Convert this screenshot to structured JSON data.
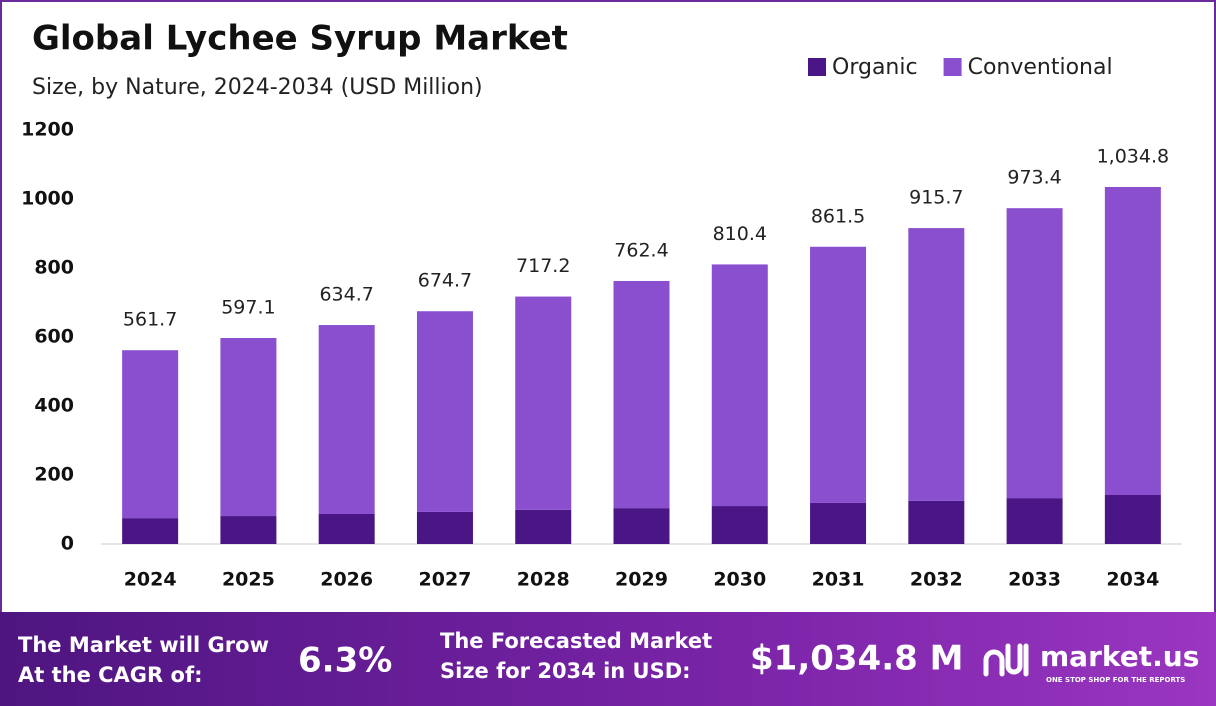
{
  "chart_data": {
    "type": "stacked_bar",
    "title": "Global Lychee Syrup Market",
    "subtitle": "Size, by Nature, 2024-2034 (USD Million)",
    "categories": [
      "2024",
      "2025",
      "2026",
      "2027",
      "2028",
      "2029",
      "2030",
      "2031",
      "2032",
      "2033",
      "2034"
    ],
    "series": [
      {
        "name": "Organic",
        "color": "#4a1585",
        "values": [
          75,
          81,
          87,
          93,
          99,
          104,
          110,
          119,
          125,
          133,
          142
        ]
      },
      {
        "name": "Conventional",
        "color": "#8a4fcf",
        "values": [
          486.7,
          516.1,
          547.7,
          581.7,
          618.2,
          658.4,
          700.4,
          742.5,
          790.7,
          840.4,
          892.8
        ]
      }
    ],
    "totals": [
      561.7,
      597.1,
      634.7,
      674.7,
      717.2,
      762.4,
      810.4,
      861.5,
      915.7,
      973.4,
      1034.8
    ],
    "total_labels": [
      "561.7",
      "597.1",
      "634.7",
      "674.7",
      "717.2",
      "762.4",
      "810.4",
      "861.5",
      "915.7",
      "973.4",
      "1,034.8"
    ],
    "ylim": [
      0,
      1200
    ],
    "yticks": [
      0,
      200,
      400,
      600,
      800,
      1000,
      1200
    ],
    "grid": false,
    "legend": "top-right"
  },
  "footer": {
    "cagr_text": [
      "The Market will Grow",
      "At the CAGR of:"
    ],
    "cagr_value": "6.3%",
    "forecast_text": [
      "The Forecasted Market",
      "Size for 2034 in USD:"
    ],
    "forecast_value": "$1,034.8 M",
    "brand": "market.us",
    "tagline": "ONE STOP SHOP FOR THE REPORTS"
  }
}
